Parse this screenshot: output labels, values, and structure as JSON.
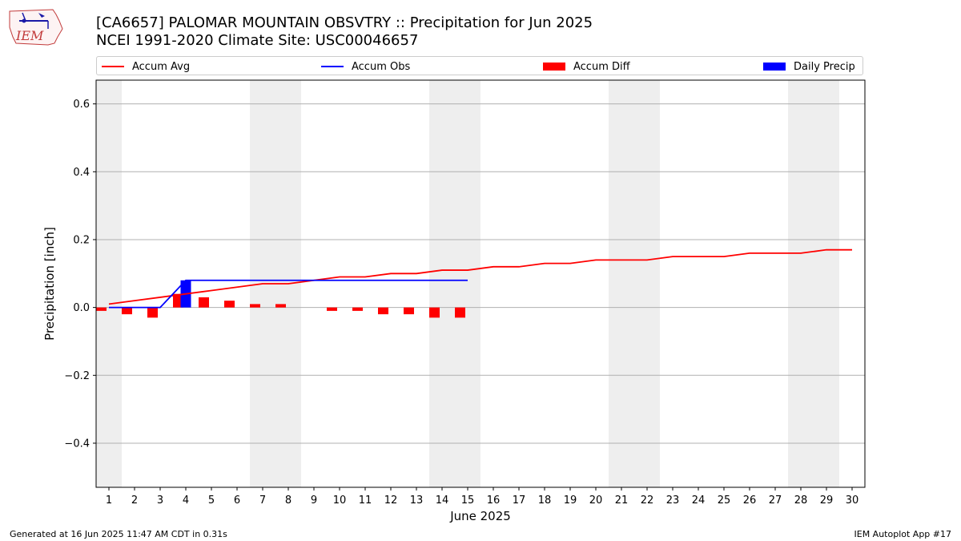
{
  "header": {
    "title_line1": "[CA6657] PALOMAR MOUNTAIN OBSVTRY :: Precipitation for Jun 2025",
    "title_line2": "NCEI 1991-2020 Climate Site: USC00046657",
    "logo_text": "IEM"
  },
  "legend": {
    "placement": "top",
    "items": [
      {
        "label": "Accum Avg",
        "color": "#ff0000",
        "kind": "line"
      },
      {
        "label": "Accum Obs",
        "color": "#0000ff",
        "kind": "line"
      },
      {
        "label": "Accum Diff",
        "color": "#ff0000",
        "kind": "bar"
      },
      {
        "label": "Daily Precip",
        "color": "#0000ff",
        "kind": "bar"
      }
    ]
  },
  "footer": {
    "left": "Generated at 16 Jun 2025 11:47 AM CDT in 0.31s",
    "right": "IEM Autoplot App #17"
  },
  "chart_data": {
    "type": "bar",
    "title": "[CA6657] PALOMAR MOUNTAIN OBSVTRY :: Precipitation for Jun 2025",
    "subtitle": "NCEI 1991-2020 Climate Site: USC00046657",
    "xlabel": "June 2025",
    "ylabel": "Precipitation [inch]",
    "x": [
      1,
      2,
      3,
      4,
      5,
      6,
      7,
      8,
      9,
      10,
      11,
      12,
      13,
      14,
      15,
      16,
      17,
      18,
      19,
      20,
      21,
      22,
      23,
      24,
      25,
      26,
      27,
      28,
      29,
      30
    ],
    "xlim": [
      0.5,
      30.5
    ],
    "ylim": [
      -0.53,
      0.67
    ],
    "yticks": [
      -0.4,
      -0.2,
      0.0,
      0.2,
      0.4,
      0.6
    ],
    "ytick_labels": [
      "−0.4",
      "−0.2",
      "0.0",
      "0.2",
      "0.4",
      "0.6"
    ],
    "grid": "horizontal",
    "weekend_shading": [
      [
        0.5,
        1.5
      ],
      [
        6.5,
        8.5
      ],
      [
        13.5,
        15.5
      ],
      [
        20.5,
        22.5
      ],
      [
        27.5,
        29.5
      ]
    ],
    "series": [
      {
        "name": "Accum Avg",
        "type": "line",
        "color": "#ff0000",
        "x": [
          1,
          2,
          3,
          4,
          5,
          6,
          7,
          8,
          9,
          10,
          11,
          12,
          13,
          14,
          15,
          16,
          17,
          18,
          19,
          20,
          21,
          22,
          23,
          24,
          25,
          26,
          27,
          28,
          29,
          30
        ],
        "values": [
          0.01,
          0.02,
          0.03,
          0.04,
          0.05,
          0.06,
          0.07,
          0.07,
          0.08,
          0.09,
          0.09,
          0.1,
          0.1,
          0.11,
          0.11,
          0.12,
          0.12,
          0.13,
          0.13,
          0.14,
          0.14,
          0.14,
          0.15,
          0.15,
          0.15,
          0.16,
          0.16,
          0.16,
          0.17,
          0.17
        ]
      },
      {
        "name": "Accum Obs",
        "type": "line",
        "color": "#0000ff",
        "x": [
          1,
          2,
          3,
          4,
          5,
          6,
          7,
          8,
          9,
          10,
          11,
          12,
          13,
          14,
          15
        ],
        "values": [
          0.0,
          0.0,
          0.0,
          0.08,
          0.08,
          0.08,
          0.08,
          0.08,
          0.08,
          0.08,
          0.08,
          0.08,
          0.08,
          0.08,
          0.08
        ]
      },
      {
        "name": "Accum Diff",
        "type": "bar",
        "color": "#ff0000",
        "x": [
          1,
          2,
          3,
          4,
          5,
          6,
          7,
          8,
          9,
          10,
          11,
          12,
          13,
          14,
          15
        ],
        "values": [
          -0.01,
          -0.02,
          -0.03,
          0.04,
          0.03,
          0.02,
          0.01,
          0.01,
          0.0,
          -0.01,
          -0.01,
          -0.02,
          -0.02,
          -0.03,
          -0.03
        ]
      },
      {
        "name": "Daily Precip",
        "type": "bar",
        "color": "#0000ff",
        "x": [
          1,
          2,
          3,
          4,
          5,
          6,
          7,
          8,
          9,
          10,
          11,
          12,
          13,
          14,
          15
        ],
        "values": [
          0.0,
          0.0,
          0.0,
          0.08,
          0.0,
          0.0,
          0.0,
          0.0,
          0.0,
          0.0,
          0.0,
          0.0,
          0.0,
          0.0,
          0.0
        ]
      }
    ]
  }
}
